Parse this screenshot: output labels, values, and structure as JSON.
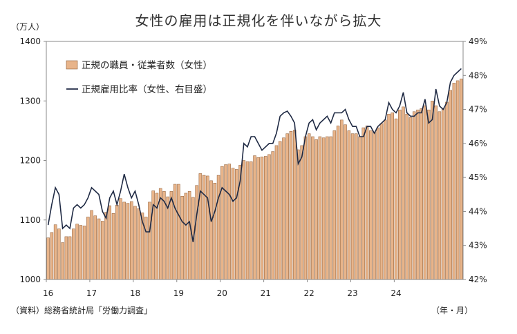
{
  "title": "女性の雇用は正規化を伴いながら拡大",
  "left_unit": "（万人）",
  "x_unit": "（年・月）",
  "source": "（資料）総務省統計局「労働力調査」",
  "chart_data": {
    "type": "bar+line",
    "title": "女性の雇用は正規化を伴いながら拡大",
    "x_tick_labels": [
      "16",
      "17",
      "18",
      "19",
      "20",
      "21",
      "22",
      "23",
      "24"
    ],
    "y_left": {
      "ylim": [
        1000,
        1400
      ],
      "ticks": [
        "1000",
        "1100",
        "1200",
        "1300",
        "1400"
      ],
      "unit": "（万人）"
    },
    "y_right": {
      "ylim": [
        42,
        49
      ],
      "ticks": [
        "42%",
        "43%",
        "44%",
        "45%",
        "46%",
        "47%",
        "48%",
        "49%"
      ]
    },
    "legend_position": "top-left",
    "grid": false,
    "series": [
      {
        "name": "正規の職員・従業者数（女性）",
        "kind": "bar",
        "axis": "left",
        "color": "#E8B48A",
        "values": [
          1070,
          1079,
          1092,
          1085,
          1062,
          1072,
          1072,
          1085,
          1093,
          1091,
          1090,
          1105,
          1116,
          1107,
          1102,
          1098,
          1113,
          1124,
          1111,
          1125,
          1136,
          1130,
          1128,
          1131,
          1123,
          1119,
          1112,
          1105,
          1130,
          1149,
          1145,
          1153,
          1148,
          1139,
          1148,
          1160,
          1160,
          1140,
          1145,
          1148,
          1138,
          1158,
          1178,
          1175,
          1174,
          1166,
          1162,
          1175,
          1190,
          1193,
          1194,
          1187,
          1185,
          1192,
          1200,
          1198,
          1198,
          1208,
          1205,
          1206,
          1207,
          1210,
          1215,
          1225,
          1232,
          1238,
          1245,
          1249,
          1251,
          1218,
          1225,
          1240,
          1245,
          1240,
          1235,
          1240,
          1238,
          1240,
          1240,
          1250,
          1258,
          1268,
          1260,
          1250,
          1245,
          1245,
          1240,
          1255,
          1258,
          1250,
          1248,
          1255,
          1262,
          1268,
          1278,
          1280,
          1270,
          1285,
          1290,
          1278,
          1272,
          1282,
          1285,
          1287,
          1292,
          1285,
          1300,
          1292,
          1282,
          1288,
          1298,
          1318,
          1330,
          1334,
          1337
        ]
      },
      {
        "name": "正規雇用比率（女性、右目盛）",
        "kind": "line",
        "axis": "right",
        "color": "#1F2A44",
        "values": [
          43.6,
          44.2,
          44.7,
          44.5,
          43.5,
          43.6,
          43.5,
          44.1,
          44.2,
          44.1,
          44.2,
          44.4,
          44.7,
          44.6,
          44.5,
          44.0,
          43.8,
          44.4,
          44.6,
          44.2,
          44.6,
          45.1,
          44.7,
          44.4,
          44.6,
          44.2,
          43.7,
          43.4,
          43.4,
          44.2,
          44.1,
          44.4,
          44.3,
          44.1,
          44.4,
          44.1,
          43.9,
          43.7,
          43.6,
          43.7,
          43.1,
          43.9,
          44.6,
          44.5,
          44.4,
          43.7,
          44.0,
          44.4,
          44.7,
          44.6,
          44.5,
          44.3,
          44.4,
          44.9,
          46.0,
          45.9,
          46.2,
          46.2,
          46.0,
          45.8,
          45.9,
          46.0,
          46.0,
          46.3,
          46.8,
          46.9,
          46.95,
          46.8,
          46.6,
          45.4,
          45.6,
          46.2,
          46.6,
          46.7,
          46.4,
          46.6,
          46.7,
          46.8,
          46.6,
          46.9,
          46.9,
          46.9,
          47.0,
          46.7,
          46.5,
          46.5,
          46.2,
          46.2,
          46.5,
          46.5,
          46.3,
          46.5,
          46.6,
          46.7,
          47.2,
          47.0,
          46.9,
          47.1,
          47.5,
          46.9,
          46.8,
          46.8,
          46.9,
          46.9,
          47.3,
          46.6,
          46.7,
          47.6,
          47.1,
          47.0,
          47.2,
          47.8,
          48.0,
          48.1,
          48.2
        ]
      }
    ]
  }
}
